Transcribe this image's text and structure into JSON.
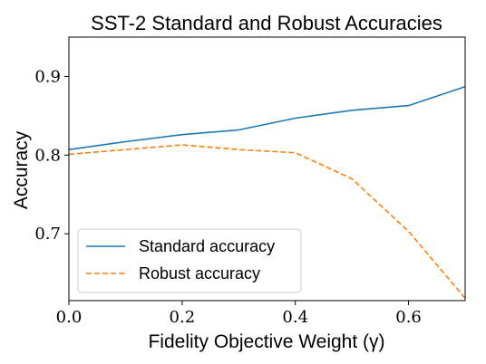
{
  "chart_data": {
    "type": "line",
    "title": "SST-2 Standard and Robust Accuracies",
    "xlabel": "Fidelity Objective Weight (γ)",
    "ylabel": "Accuracy",
    "xlim": [
      0.0,
      0.7
    ],
    "ylim": [
      0.615,
      0.95
    ],
    "xticks": [
      0.0,
      0.2,
      0.4,
      0.6
    ],
    "xtick_labels": [
      "0.0",
      "0.2",
      "0.4",
      "0.6"
    ],
    "yticks": [
      0.7,
      0.8,
      0.9
    ],
    "ytick_labels": [
      "0.7",
      "0.8",
      "0.9"
    ],
    "grid": false,
    "legend_position": "lower-left",
    "x": [
      0.0,
      0.1,
      0.2,
      0.3,
      0.4,
      0.5,
      0.6,
      0.7
    ],
    "series": [
      {
        "name": "Standard accuracy",
        "color": "#1f77b4",
        "style": "solid",
        "values": [
          0.807,
          0.817,
          0.826,
          0.832,
          0.847,
          0.857,
          0.863,
          0.887
        ]
      },
      {
        "name": "Robust accuracy",
        "color": "#ff7f0e",
        "style": "dashed",
        "values": [
          0.801,
          0.807,
          0.813,
          0.807,
          0.803,
          0.77,
          0.703,
          0.618
        ]
      }
    ]
  }
}
